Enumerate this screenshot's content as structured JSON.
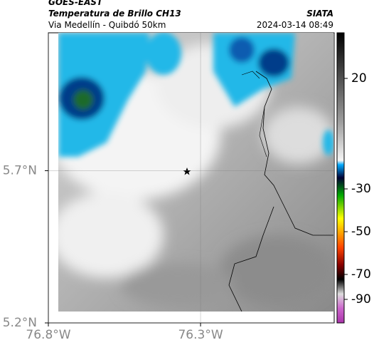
{
  "header": {
    "source": "GOES-EAST",
    "title": "Temperatura de Brillo CH13",
    "subtitle": "Via Medellín - Quibdó 50km",
    "agency": "SIATA",
    "datetime": "2024-03-14 08:49"
  },
  "map": {
    "lat_range": [
      5.2,
      6.153
    ],
    "lon_range": [
      -76.8,
      -75.861
    ],
    "lat_ticks": [
      {
        "value": 5.7,
        "label": "5.7°N"
      },
      {
        "value": 5.2,
        "label": "5.2°N"
      }
    ],
    "lon_ticks": [
      {
        "value": -76.8,
        "label": "76.8°W"
      },
      {
        "value": -76.3,
        "label": "76.3°W"
      }
    ]
  },
  "colorbar": {
    "ticks": [
      20,
      -30,
      -50,
      -70,
      -90
    ]
  }
}
